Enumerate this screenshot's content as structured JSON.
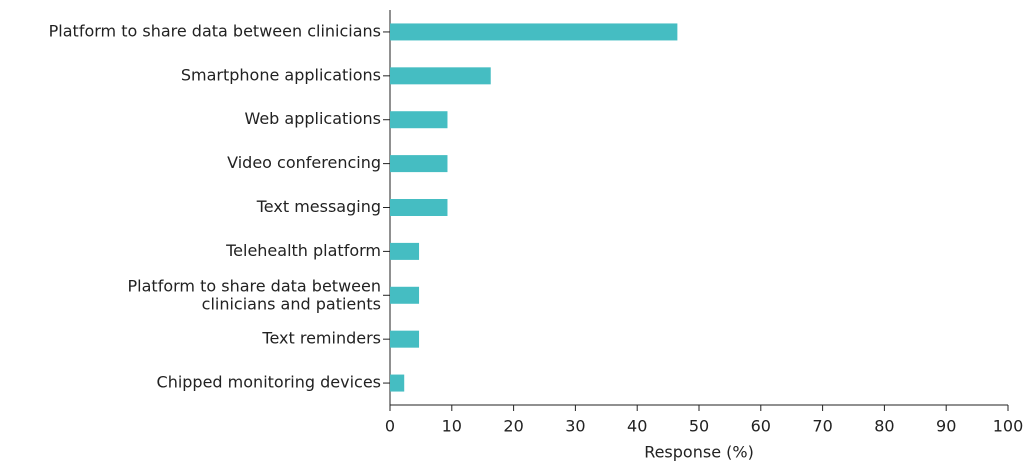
{
  "chart_data": {
    "type": "barh",
    "categories": [
      "Platform to share data between clinicians",
      "Smartphone applications",
      "Web applications",
      "Video conferencing",
      "Text messaging",
      "Telehealth platform",
      "Platform to share data between\nclinicians and patients",
      "Text reminders",
      "Chipped monitoring devices"
    ],
    "values": [
      46.5,
      16.3,
      9.3,
      9.3,
      9.3,
      4.7,
      4.7,
      4.7,
      2.3
    ],
    "color": "#45bdc2",
    "xlabel": "Response (%)",
    "xlim": [
      0,
      100
    ],
    "xticks": [
      0,
      10,
      20,
      30,
      40,
      50,
      60,
      70,
      80,
      90,
      100
    ]
  }
}
